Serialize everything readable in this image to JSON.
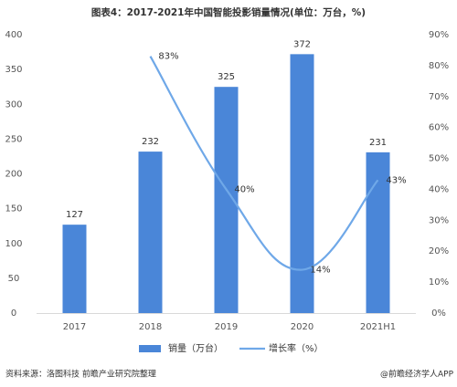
{
  "chart_data": {
    "type": "bar_line",
    "title": "图表4：2017-2021年中国智能投影销量情况(单位：万台，%)",
    "categories": [
      "2017",
      "2018",
      "2019",
      "2020",
      "2021H1"
    ],
    "series": [
      {
        "name": "销量（万台）",
        "type": "bar",
        "color": "#4a86d8",
        "values": [
          127,
          232,
          325,
          372,
          231
        ]
      },
      {
        "name": "增长率（%）",
        "type": "line",
        "axis": "y2",
        "color": "#6fa8e8",
        "values": [
          null,
          83,
          40,
          14,
          43
        ],
        "value_labels": [
          null,
          "83%",
          "40%",
          "14%",
          "43%"
        ]
      }
    ],
    "ylim": [
      0,
      400
    ],
    "yticks": [
      0,
      50,
      100,
      150,
      200,
      250,
      300,
      350,
      400
    ],
    "y2lim": [
      0,
      90
    ],
    "y2ticks": [
      {
        "value": 0,
        "label": "0%"
      },
      {
        "value": 10,
        "label": "10%"
      },
      {
        "value": 20,
        "label": "20%"
      },
      {
        "value": 30,
        "label": "30%"
      },
      {
        "value": 40,
        "label": "40%"
      },
      {
        "value": 50,
        "label": "50%"
      },
      {
        "value": 60,
        "label": "60%"
      },
      {
        "value": 70,
        "label": "70%"
      },
      {
        "value": 80,
        "label": "80%"
      },
      {
        "value": 90,
        "label": "90%"
      }
    ],
    "grid": false,
    "legend": "bottom",
    "source": "资料来源：洛图科技 前瞻产业研究院整理",
    "credit": "@前瞻经济学人APP"
  }
}
